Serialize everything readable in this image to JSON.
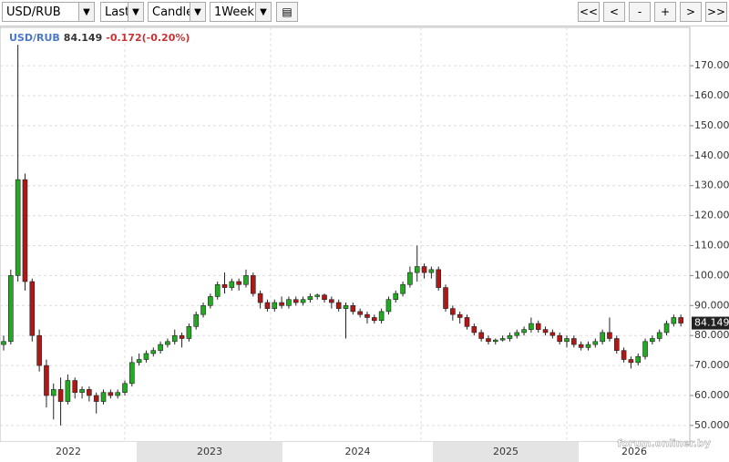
{
  "toolbar": {
    "symbol": "USD/RUB",
    "price_type": "Last",
    "chart_style": "Candle",
    "period": "1Week",
    "buttons": [
      "<<",
      "<",
      "-",
      "+",
      ">",
      ">>"
    ]
  },
  "chart_data": {
    "type": "candlestick",
    "symbol": "USD/RUB",
    "last": "84.149",
    "change": "-0.172(-0.20%)",
    "watermark": "forum.onliner.by",
    "up_color": "#22aa22",
    "down_color": "#b01818",
    "ylim": [
      44.5,
      182.8
    ],
    "yticks": [
      {
        "value": 50,
        "label": "50.000"
      },
      {
        "value": 60,
        "label": "60.000"
      },
      {
        "value": 70,
        "label": "70.000"
      },
      {
        "value": 80,
        "label": "80.000"
      },
      {
        "value": 90,
        "label": "90.000"
      },
      {
        "value": 100,
        "label": "100.000"
      },
      {
        "value": 110,
        "label": "110.000"
      },
      {
        "value": 120,
        "label": "120.000"
      },
      {
        "value": 130,
        "label": "130.000"
      },
      {
        "value": 140,
        "label": "140.000"
      },
      {
        "value": 150,
        "label": "150.000"
      },
      {
        "value": 160,
        "label": "160.000"
      },
      {
        "value": 170,
        "label": "170.000"
      }
    ],
    "years": [
      "2022",
      "2023",
      "2024",
      "2025",
      "2026"
    ],
    "open": [
      77,
      78,
      100,
      132,
      98,
      80,
      70,
      60,
      62,
      58,
      65,
      61,
      62,
      60,
      58,
      61,
      60,
      61,
      64,
      71,
      72,
      74,
      75,
      77,
      78,
      80,
      79,
      83,
      87,
      90,
      93,
      97,
      96,
      98,
      97,
      100,
      94,
      91,
      89,
      91,
      90,
      92,
      91,
      92,
      93,
      93.5,
      92,
      91,
      89,
      90,
      88,
      87,
      86,
      85,
      88,
      92,
      94,
      97,
      101,
      103,
      101,
      102,
      96,
      89,
      87,
      86,
      83,
      81,
      79,
      78,
      78.5,
      79,
      80,
      81,
      82,
      84,
      82,
      81,
      80,
      78,
      79,
      77,
      76,
      77,
      78,
      81,
      79,
      75,
      72,
      71,
      73,
      78,
      79,
      81,
      84,
      86
    ],
    "high": [
      80,
      102,
      177,
      134,
      99,
      82,
      72,
      64,
      66,
      67,
      66,
      63,
      63,
      61,
      62,
      62,
      62,
      65,
      73,
      74,
      75,
      76,
      78,
      79,
      82,
      81,
      84,
      88,
      91,
      94,
      98,
      101,
      99,
      99,
      102,
      101,
      95,
      92,
      92,
      93,
      93,
      93,
      93,
      94,
      94,
      94,
      93,
      92,
      91,
      91,
      89,
      88,
      87,
      89,
      93,
      95,
      98,
      103,
      110,
      104,
      103,
      103,
      97,
      90,
      88,
      87,
      84,
      82,
      80,
      79,
      80,
      81,
      82,
      83,
      86,
      85,
      83,
      82,
      81,
      80,
      80,
      78,
      78,
      79,
      82,
      86,
      80,
      76,
      73,
      74,
      79,
      80,
      82,
      85,
      87,
      87
    ],
    "low": [
      75,
      77,
      98,
      95,
      78,
      68,
      56,
      52,
      50,
      57,
      59,
      59,
      58,
      54,
      57,
      59,
      59,
      60,
      63,
      70,
      71,
      73,
      74,
      76,
      77,
      76,
      78,
      82,
      86,
      89,
      92,
      94,
      95,
      95,
      96,
      93,
      89,
      88,
      88,
      89,
      89,
      90,
      90,
      91,
      92,
      91,
      89,
      88,
      79,
      87,
      86,
      84,
      84,
      84,
      87,
      91,
      93,
      96,
      98,
      99,
      99,
      95,
      88,
      85,
      84,
      82,
      80,
      78,
      77,
      77,
      78,
      78,
      79,
      80,
      81,
      81,
      80,
      79,
      77,
      76,
      76,
      75,
      75,
      76,
      77,
      78,
      74,
      71,
      69,
      70,
      72,
      77,
      78,
      80,
      83,
      83
    ],
    "close": [
      78,
      100,
      132,
      98,
      80,
      70,
      60,
      62,
      58,
      65,
      61,
      62,
      60,
      58,
      61,
      60,
      61,
      64,
      71,
      72,
      74,
      75,
      77,
      78,
      80,
      79,
      83,
      87,
      90,
      93,
      97,
      96,
      98,
      97,
      100,
      94,
      91,
      89,
      91,
      90,
      92,
      91,
      92,
      93,
      93.5,
      92,
      91,
      89,
      90,
      88,
      87,
      86,
      85,
      88,
      92,
      94,
      97,
      101,
      103,
      101,
      102,
      96,
      89,
      87,
      86,
      83,
      81,
      79,
      78,
      78.5,
      79,
      80,
      81,
      82,
      84,
      82,
      81,
      80,
      78,
      79,
      77,
      76,
      77,
      78,
      81,
      79,
      75,
      72,
      71,
      73,
      78,
      79,
      81,
      84,
      86,
      84.149
    ]
  }
}
